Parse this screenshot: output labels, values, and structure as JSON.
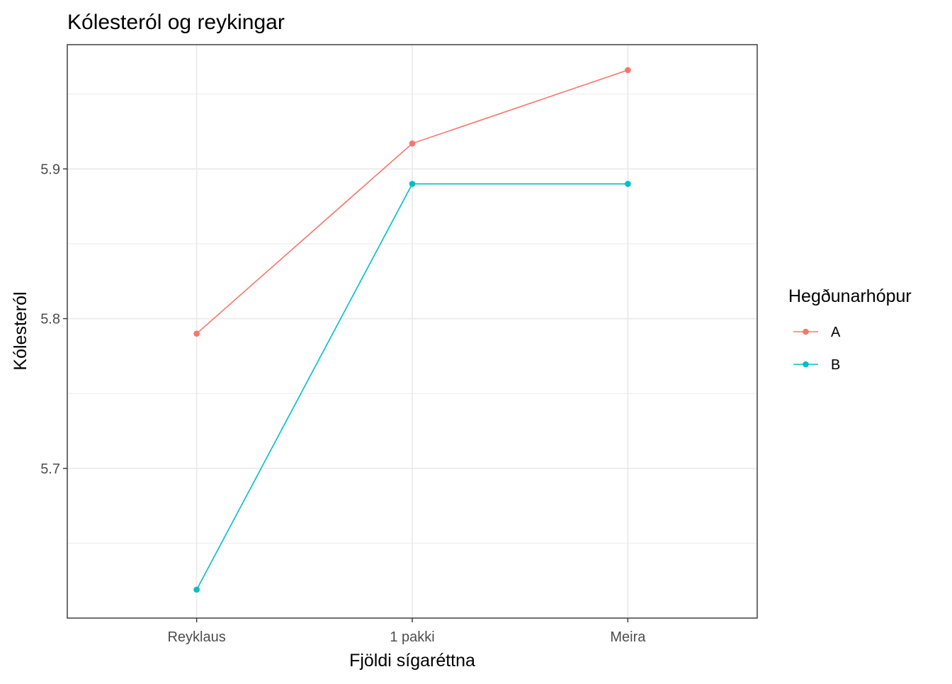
{
  "chart_data": {
    "type": "line",
    "title": "Kólesteról og reykingar",
    "xlabel": "Fjöldi sígaréttna",
    "ylabel": "Kólesteról",
    "categories": [
      "Reyklaus",
      "1 pakki",
      "Meira"
    ],
    "y_ticks": [
      "5.7",
      "5.8",
      "5.9"
    ],
    "ylim": [
      5.6,
      5.983
    ],
    "grid": true,
    "legend": {
      "title": "Hegðunarhópur",
      "position": "right"
    },
    "series": [
      {
        "name": "A",
        "color": "#F8766D",
        "values": [
          5.79,
          5.917,
          5.966
        ]
      },
      {
        "name": "B",
        "color": "#00BFC4",
        "values": [
          5.619,
          5.89,
          5.89
        ]
      }
    ]
  }
}
